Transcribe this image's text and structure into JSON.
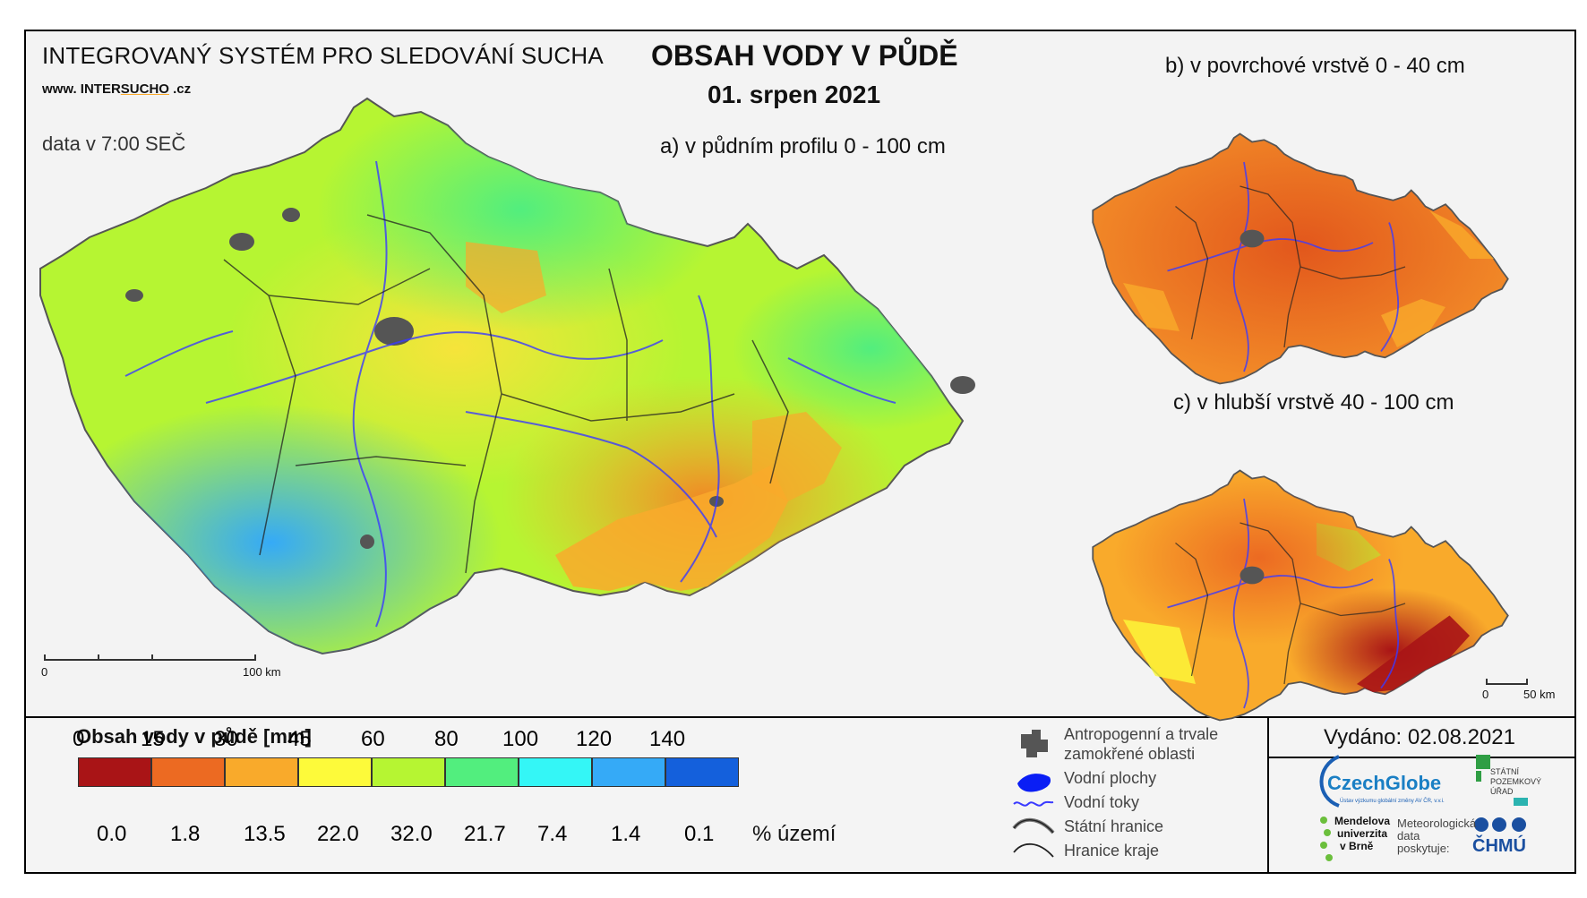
{
  "header": {
    "system_title": "INTEGROVANÝ SYSTÉM PRO SLEDOVÁNÍ SUCHA",
    "website_prefix": "www. INTER",
    "website_underline": "SUCHO",
    "website_suffix": " .cz",
    "data_time": "data v 7:00 SEČ",
    "main_title": "OBSAH VODY V PŮDĚ",
    "date": "01. srpen 2021"
  },
  "maps": {
    "a_label": "a) v půdním profilu 0 - 100 cm",
    "b_label": "b) v povrchové vrstvě 0 - 40 cm",
    "c_label": "c) v hlubší vrstvě 40 - 100 cm"
  },
  "scalebars": {
    "main_zero": "0",
    "main_end": "100 km",
    "small_zero": "0",
    "small_end": "50 km"
  },
  "legend": {
    "title": "Obsah vody v půdě  [mm]",
    "thresholds": [
      "0",
      "15",
      "30",
      "45",
      "60",
      "80",
      "100",
      "120",
      "140"
    ],
    "colors": [
      "#a91416",
      "#ec6a22",
      "#f9aa2b",
      "#fdfa3a",
      "#b6f532",
      "#52ee7e",
      "#34f6f6",
      "#35aaf7",
      "#1460dc"
    ],
    "percents": [
      "0.0",
      "1.8",
      "13.5",
      "22.0",
      "32.0",
      "21.7",
      "7.4",
      "1.4",
      "0.1"
    ],
    "percent_unit": "% území"
  },
  "symbols": {
    "anthropogenic_line1": "Antropogenní a trvale",
    "anthropogenic_line2": "zamokřené oblasti",
    "water_bodies": "Vodní plochy",
    "streams": "Vodní toky",
    "state_border": "Státní hranice",
    "region_border": "Hranice kraje"
  },
  "issued": "Vydáno: 02.08.2021",
  "logos": {
    "czechglobe": "CzechGlobe",
    "czechglobe_sub": "Ústav výzkumu globální změny AV ČR, v.v.i.",
    "spu_line1": "STÁTNÍ",
    "spu_line2": "POZEMKOVÝ",
    "spu_line3": "ÚŘAD",
    "mendel_line1": "Mendelova",
    "mendel_line2": "univerzita",
    "mendel_line3": "v Brně",
    "met_line1": "Meteorologická",
    "met_line2": "data",
    "met_line3": "poskytuje:",
    "chmu": "ČHMÚ"
  }
}
